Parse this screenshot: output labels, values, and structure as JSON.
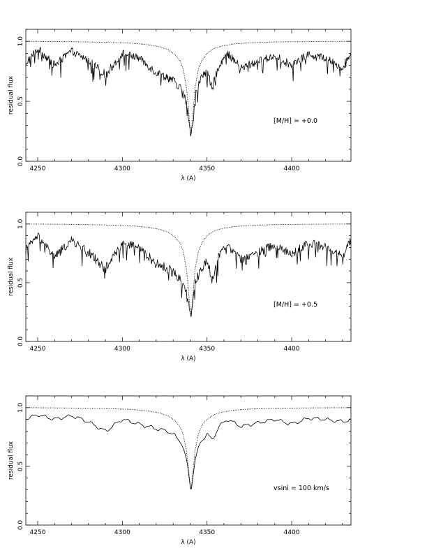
{
  "chart_data": [
    {
      "type": "line",
      "xlabel": "λ (A)",
      "ylabel": "residual flux",
      "xlim": [
        4243,
        4435
      ],
      "ylim": [
        0,
        1.1
      ],
      "x_ticks": [
        "4250",
        "4300",
        "4350",
        "4400"
      ],
      "y_ticks": [
        "0.0",
        "0.5",
        "1.0"
      ],
      "annotation": "[M/H] = +0.0",
      "line_center": 4340.5,
      "line_min": 0.21,
      "series": [
        {
          "style": "dotted",
          "x": [
            4243,
            4270,
            4290,
            4305,
            4315,
            4322,
            4327,
            4331,
            4334,
            4336,
            4338,
            4339.5,
            4340.5,
            4341.5,
            4343,
            4345,
            4347,
            4350,
            4354,
            4359,
            4366,
            4375,
            4390,
            4410,
            4435
          ],
          "y": [
            1.0,
            0.997,
            0.992,
            0.985,
            0.972,
            0.955,
            0.93,
            0.89,
            0.84,
            0.77,
            0.6,
            0.36,
            0.21,
            0.36,
            0.62,
            0.77,
            0.84,
            0.9,
            0.94,
            0.962,
            0.978,
            0.988,
            0.995,
            0.998,
            1.0
          ]
        },
        {
          "style": "solid",
          "x": [
            4243,
            4250,
            4260,
            4270,
            4280,
            4290,
            4300,
            4310,
            4320,
            4327,
            4331,
            4335,
            4338,
            4340.5,
            4343,
            4346,
            4350,
            4353,
            4357,
            4362,
            4370,
            4380,
            4390,
            4400,
            4410,
            4420,
            4430,
            4435
          ],
          "y": [
            0.82,
            0.94,
            0.8,
            0.92,
            0.84,
            0.72,
            0.9,
            0.86,
            0.74,
            0.7,
            0.66,
            0.6,
            0.48,
            0.21,
            0.55,
            0.68,
            0.76,
            0.6,
            0.8,
            0.9,
            0.78,
            0.83,
            0.88,
            0.8,
            0.89,
            0.86,
            0.78,
            0.9
          ]
        }
      ]
    },
    {
      "type": "line",
      "xlabel": "λ (A)",
      "ylabel": "residual flux",
      "xlim": [
        4243,
        4435
      ],
      "ylim": [
        0,
        1.1
      ],
      "x_ticks": [
        "4250",
        "4300",
        "4350",
        "4400"
      ],
      "y_ticks": [
        "0.0",
        "0.5",
        "1.0"
      ],
      "annotation": "[M/H] = +0.5",
      "line_center": 4340.5,
      "line_min": 0.21,
      "series": [
        {
          "style": "dotted",
          "x": [
            4243,
            4270,
            4290,
            4305,
            4315,
            4322,
            4327,
            4331,
            4334,
            4336,
            4338,
            4339.5,
            4340.5,
            4341.5,
            4343,
            4345,
            4347,
            4350,
            4354,
            4359,
            4366,
            4375,
            4390,
            4410,
            4435
          ],
          "y": [
            1.0,
            0.997,
            0.992,
            0.985,
            0.972,
            0.955,
            0.93,
            0.89,
            0.84,
            0.77,
            0.6,
            0.36,
            0.21,
            0.36,
            0.62,
            0.77,
            0.84,
            0.9,
            0.94,
            0.962,
            0.978,
            0.988,
            0.995,
            0.998,
            1.0
          ]
        },
        {
          "style": "solid",
          "x": [
            4243,
            4250,
            4260,
            4270,
            4280,
            4290,
            4300,
            4310,
            4320,
            4327,
            4331,
            4335,
            4338,
            4340.5,
            4343,
            4346,
            4350,
            4353,
            4357,
            4362,
            4370,
            4380,
            4390,
            4400,
            4410,
            4420,
            4430,
            4435
          ],
          "y": [
            0.78,
            0.9,
            0.72,
            0.86,
            0.76,
            0.62,
            0.84,
            0.8,
            0.66,
            0.62,
            0.58,
            0.52,
            0.42,
            0.21,
            0.5,
            0.6,
            0.7,
            0.52,
            0.74,
            0.84,
            0.7,
            0.76,
            0.82,
            0.74,
            0.84,
            0.8,
            0.72,
            0.86
          ]
        }
      ]
    },
    {
      "type": "line",
      "xlabel": "λ (A)",
      "ylabel": "residual flux",
      "xlim": [
        4243,
        4435
      ],
      "ylim": [
        0,
        1.1
      ],
      "x_ticks": [
        "4250",
        "4300",
        "4350",
        "4400"
      ],
      "y_ticks": [
        "0.0",
        "0.5",
        "1.0"
      ],
      "annotation": "vsini = 100 km/s",
      "line_center": 4340.5,
      "line_min": 0.29,
      "series": [
        {
          "style": "dotted",
          "x": [
            4243,
            4270,
            4290,
            4305,
            4315,
            4322,
            4327,
            4331,
            4334,
            4336,
            4338,
            4339.5,
            4340.5,
            4341.5,
            4343,
            4345,
            4347,
            4350,
            4354,
            4359,
            4366,
            4375,
            4390,
            4410,
            4435
          ],
          "y": [
            1.0,
            0.997,
            0.992,
            0.985,
            0.972,
            0.955,
            0.93,
            0.89,
            0.84,
            0.77,
            0.62,
            0.42,
            0.29,
            0.42,
            0.64,
            0.78,
            0.85,
            0.9,
            0.94,
            0.962,
            0.978,
            0.988,
            0.995,
            0.998,
            1.0
          ]
        },
        {
          "style": "solid",
          "x": [
            4243,
            4250,
            4260,
            4270,
            4280,
            4290,
            4300,
            4310,
            4320,
            4327,
            4331,
            4335,
            4338,
            4340.5,
            4343,
            4346,
            4350,
            4353,
            4357,
            4362,
            4370,
            4380,
            4390,
            4400,
            4410,
            4420,
            4430,
            4435
          ],
          "y": [
            0.9,
            0.94,
            0.9,
            0.93,
            0.88,
            0.8,
            0.9,
            0.86,
            0.82,
            0.8,
            0.76,
            0.7,
            0.55,
            0.29,
            0.56,
            0.7,
            0.78,
            0.72,
            0.84,
            0.9,
            0.84,
            0.87,
            0.9,
            0.86,
            0.91,
            0.9,
            0.88,
            0.9
          ]
        }
      ]
    }
  ]
}
